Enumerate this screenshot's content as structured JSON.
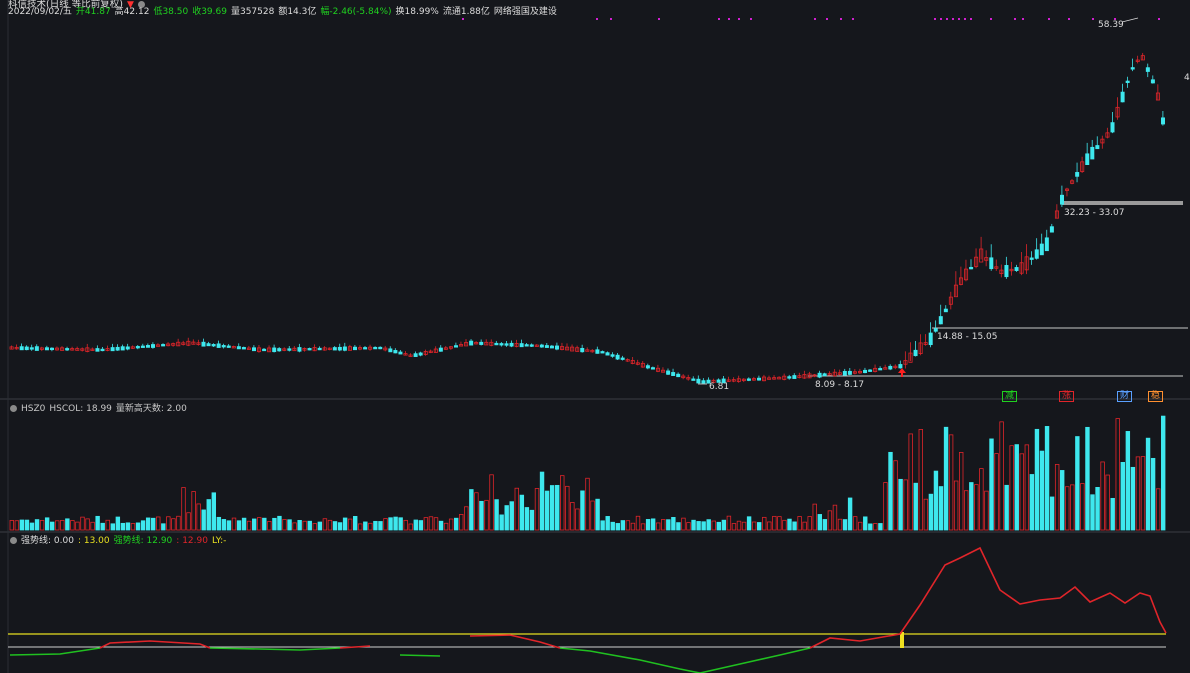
{
  "header": {
    "title": "科信技术(日线 等比前复权)",
    "date": "2022/09/02/五",
    "open": "开41.87",
    "high": "高42.12",
    "low": "低38.50",
    "close": "收39.69",
    "volume": "量357528",
    "amount": "额14.3亿",
    "change": "幅-2.46(-5.84%)",
    "turnover": "换18.99%",
    "float": "流通1.88亿",
    "concept": "网络强国及建设"
  },
  "price_labels": {
    "peak": "58.39",
    "low_point": "6.81",
    "range_1": "8.09 - 8.17",
    "range_2": "14.88 - 15.05",
    "range_3": "32.23 - 33.07",
    "right_edge": "4"
  },
  "hsz_panel": {
    "name": "HSZ0",
    "hscol": "HSCOL: 18.99",
    "record_days": "量新高天数: 2.00"
  },
  "qsx_panel": {
    "name": "强势线",
    "v1": ": 0.00",
    "v2": ": 13.00",
    "label2": "强势线: 12.90",
    "v3": ": 12.90",
    "ly": "LY:-"
  },
  "tags": [
    "减",
    "涨",
    "财",
    "稳"
  ],
  "colors": {
    "up": "#e0252a",
    "down": "#3ee8ee",
    "green_line": "#20c020",
    "yellow_line": "#e8e020",
    "magenta": "#d020d0"
  }
}
